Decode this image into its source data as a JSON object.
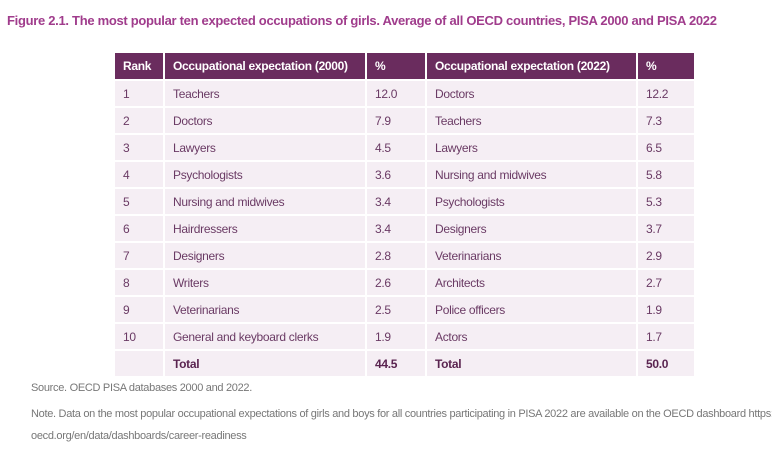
{
  "title": {
    "label": "Figure  2.1.",
    "text": "The most popular ten expected occupations of girls. Average of all OECD countries, PISA 2000 and PISA 2022"
  },
  "headers": [
    "Rank",
    "Occupational expectation  (2000)",
    "%",
    "Occupational expectation (2022)",
    "%"
  ],
  "rows": [
    [
      "1",
      "Teachers",
      "12.0",
      "Doctors",
      "12.2"
    ],
    [
      "2",
      "Doctors",
      "7.9",
      "Teachers",
      "7.3"
    ],
    [
      "3",
      "Lawyers",
      "4.5",
      "Lawyers",
      "6.5"
    ],
    [
      "4",
      "Psychologists",
      "3.6",
      "Nursing and midwives",
      "5.8"
    ],
    [
      "5",
      "Nursing and midwives",
      "3.4",
      "Psychologists",
      "5.3"
    ],
    [
      "6",
      "Hairdressers",
      "3.4",
      "Designers",
      "3.7"
    ],
    [
      "7",
      "Designers",
      "2.8",
      "Veterinarians",
      "2.9"
    ],
    [
      "8",
      "Writers",
      "2.6",
      "Architects",
      "2.7"
    ],
    [
      "9",
      "Veterinarians",
      "2.5",
      "Police officers",
      "1.9"
    ],
    [
      "10",
      "General and keyboard clerks",
      "1.9",
      "Actors",
      "1.7"
    ]
  ],
  "total": [
    "",
    "Total",
    "44.5",
    "Total",
    "50.0"
  ],
  "source": "Source. OECD PISA databases 2000 and 2022.",
  "note_line1": "Note. Data on the most popular occupational expectations of girls and boys for all countries participating in PISA 2022 are available on the OECD dashboard https://www.",
  "note_line2": "oecd.org/en/data/dashboards/career-readiness",
  "colors": {
    "header_bg": "#6a2c5e",
    "row_bg": "#f5eef4",
    "title": "#a03c8c"
  }
}
